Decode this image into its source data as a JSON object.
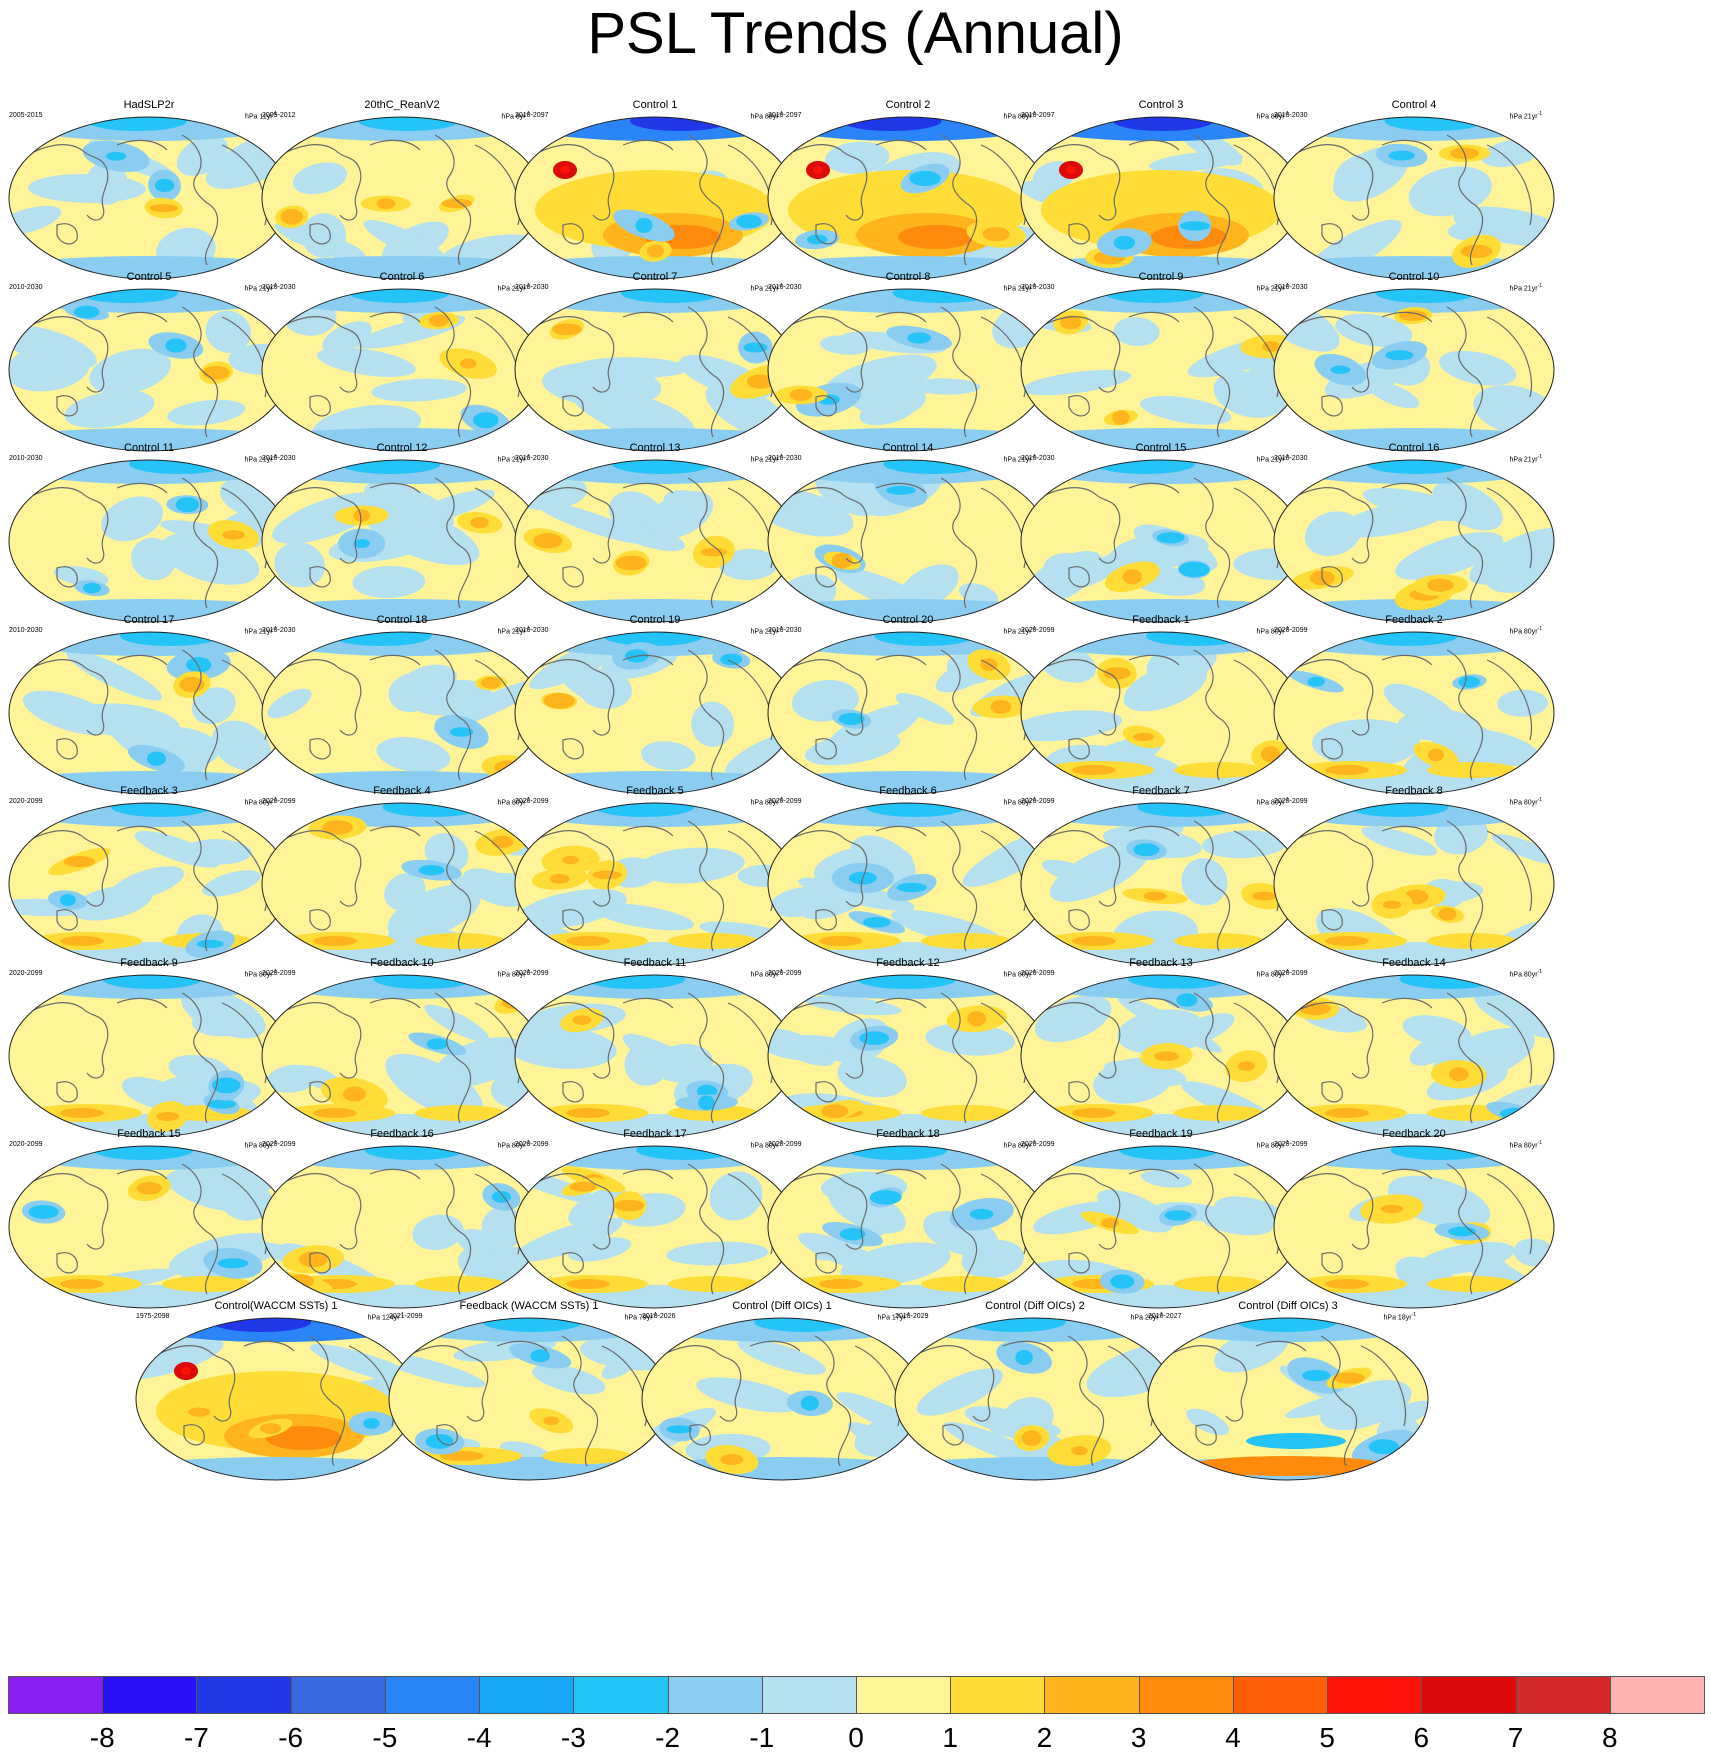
{
  "title": "PSL Trends (Annual)",
  "panels": [
    {
      "name": "HadSLP2r",
      "period": "2005-2015",
      "units": "hPa 11yr",
      "exp": "-1"
    },
    {
      "name": "20thC_ReanV2",
      "period": "2005-2012",
      "units": "hPa 8yr",
      "exp": "-1"
    },
    {
      "name": "Control 1",
      "period": "2010-2097",
      "units": "hPa 88yr",
      "exp": "-1"
    },
    {
      "name": "Control 2",
      "period": "2010-2097",
      "units": "hPa 88yr",
      "exp": "-1"
    },
    {
      "name": "Control 3",
      "period": "2010-2097",
      "units": "hPa 88yr",
      "exp": "-1"
    },
    {
      "name": "Control 4",
      "period": "2010-2030",
      "units": "hPa 21yr",
      "exp": "-1"
    },
    {
      "name": "Control 5",
      "period": "2010-2030",
      "units": "hPa 21yr",
      "exp": "-1"
    },
    {
      "name": "Control 6",
      "period": "2010-2030",
      "units": "hPa 21yr",
      "exp": "-1"
    },
    {
      "name": "Control 7",
      "period": "2010-2030",
      "units": "hPa 21yr",
      "exp": "-1"
    },
    {
      "name": "Control 8",
      "period": "2010-2030",
      "units": "hPa 21yr",
      "exp": "-1"
    },
    {
      "name": "Control 9",
      "period": "2010-2030",
      "units": "hPa 21yr",
      "exp": "-1"
    },
    {
      "name": "Control 10",
      "period": "2010-2030",
      "units": "hPa 21yr",
      "exp": "-1"
    },
    {
      "name": "Control 11",
      "period": "2010-2030",
      "units": "hPa 21yr",
      "exp": "-1"
    },
    {
      "name": "Control 12",
      "period": "2010-2030",
      "units": "hPa 21yr",
      "exp": "-1"
    },
    {
      "name": "Control 13",
      "period": "2010-2030",
      "units": "hPa 21yr",
      "exp": "-1"
    },
    {
      "name": "Control 14",
      "period": "2010-2030",
      "units": "hPa 21yr",
      "exp": "-1"
    },
    {
      "name": "Control 15",
      "period": "2010-2030",
      "units": "hPa 21yr",
      "exp": "-1"
    },
    {
      "name": "Control 16",
      "period": "2010-2030",
      "units": "hPa 21yr",
      "exp": "-1"
    },
    {
      "name": "Control 17",
      "period": "2010-2030",
      "units": "hPa 21yr",
      "exp": "-1"
    },
    {
      "name": "Control 18",
      "period": "2010-2030",
      "units": "hPa 21yr",
      "exp": "-1"
    },
    {
      "name": "Control 19",
      "period": "2010-2030",
      "units": "hPa 21yr",
      "exp": "-1"
    },
    {
      "name": "Control 20",
      "period": "2010-2030",
      "units": "hPa 21yr",
      "exp": "-1"
    },
    {
      "name": "Feedback 1",
      "period": "2020-2099",
      "units": "hPa 80yr",
      "exp": "-1"
    },
    {
      "name": "Feedback 2",
      "period": "2020-2099",
      "units": "hPa 80yr",
      "exp": "-1"
    },
    {
      "name": "Feedback 3",
      "period": "2020-2099",
      "units": "hPa 80yr",
      "exp": "-1"
    },
    {
      "name": "Feedback 4",
      "period": "2020-2099",
      "units": "hPa 80yr",
      "exp": "-1"
    },
    {
      "name": "Feedback 5",
      "period": "2020-2099",
      "units": "hPa 80yr",
      "exp": "-1"
    },
    {
      "name": "Feedback 6",
      "period": "2020-2099",
      "units": "hPa 80yr",
      "exp": "-1"
    },
    {
      "name": "Feedback 7",
      "period": "2020-2099",
      "units": "hPa 80yr",
      "exp": "-1"
    },
    {
      "name": "Feedback 8",
      "period": "2020-2099",
      "units": "hPa 80yr",
      "exp": "-1"
    },
    {
      "name": "Feedback 9",
      "period": "2020-2099",
      "units": "hPa 80yr",
      "exp": "-1"
    },
    {
      "name": "Feedback 10",
      "period": "2020-2099",
      "units": "hPa 80yr",
      "exp": "-1"
    },
    {
      "name": "Feedback 11",
      "period": "2020-2099",
      "units": "hPa 80yr",
      "exp": "-1"
    },
    {
      "name": "Feedback 12",
      "period": "2020-2099",
      "units": "hPa 80yr",
      "exp": "-1"
    },
    {
      "name": "Feedback 13",
      "period": "2020-2099",
      "units": "hPa 80yr",
      "exp": "-1"
    },
    {
      "name": "Feedback 14",
      "period": "2020-2099",
      "units": "hPa 80yr",
      "exp": "-1"
    },
    {
      "name": "Feedback 15",
      "period": "2020-2099",
      "units": "hPa 80yr",
      "exp": "-1"
    },
    {
      "name": "Feedback 16",
      "period": "2020-2099",
      "units": "hPa 80yr",
      "exp": "-1"
    },
    {
      "name": "Feedback 17",
      "period": "2020-2099",
      "units": "hPa 80yr",
      "exp": "-1"
    },
    {
      "name": "Feedback 18",
      "period": "2020-2099",
      "units": "hPa 80yr",
      "exp": "-1"
    },
    {
      "name": "Feedback 19",
      "period": "2020-2099",
      "units": "hPa 80yr",
      "exp": "-1"
    },
    {
      "name": "Feedback 20",
      "period": "2020-2099",
      "units": "hPa 80yr",
      "exp": "-1"
    },
    {
      "name": "Control(WACCM SSTs) 1",
      "period": "1975-2098",
      "units": "hPa 124yr",
      "exp": "-1"
    },
    {
      "name": "Feedback (WACCM SSTs) 1",
      "period": "2021-2099",
      "units": "hPa 79yr",
      "exp": "-1"
    },
    {
      "name": "Control (Diff OICs) 1",
      "period": "2010-2026",
      "units": "hPa 17yr",
      "exp": "-1"
    },
    {
      "name": "Control (Diff OICs) 2",
      "period": "2010-2029",
      "units": "hPa 20yr",
      "exp": "-1"
    },
    {
      "name": "Control (Diff OICs) 3",
      "period": "2010-2027",
      "units": "hPa 18yr",
      "exp": "-1"
    }
  ],
  "colorbar": {
    "labels": [
      "-8",
      "-7",
      "-6",
      "-5",
      "-4",
      "-3",
      "-2",
      "-1",
      "0",
      "1",
      "2",
      "3",
      "4",
      "5",
      "6",
      "7",
      "8"
    ],
    "colors": [
      "#8a1ef0",
      "#2a10f6",
      "#2037e8",
      "#3a68e0",
      "#2a86f8",
      "#18a8f8",
      "#24c4f8",
      "#8acdf0",
      "#b4e0f0",
      "#fff598",
      "#ffdd36",
      "#ffb41c",
      "#ff8a0c",
      "#ff5c08",
      "#ff1208",
      "#dc0a0a",
      "#d2282a",
      "#ffb2b2"
    ]
  }
}
